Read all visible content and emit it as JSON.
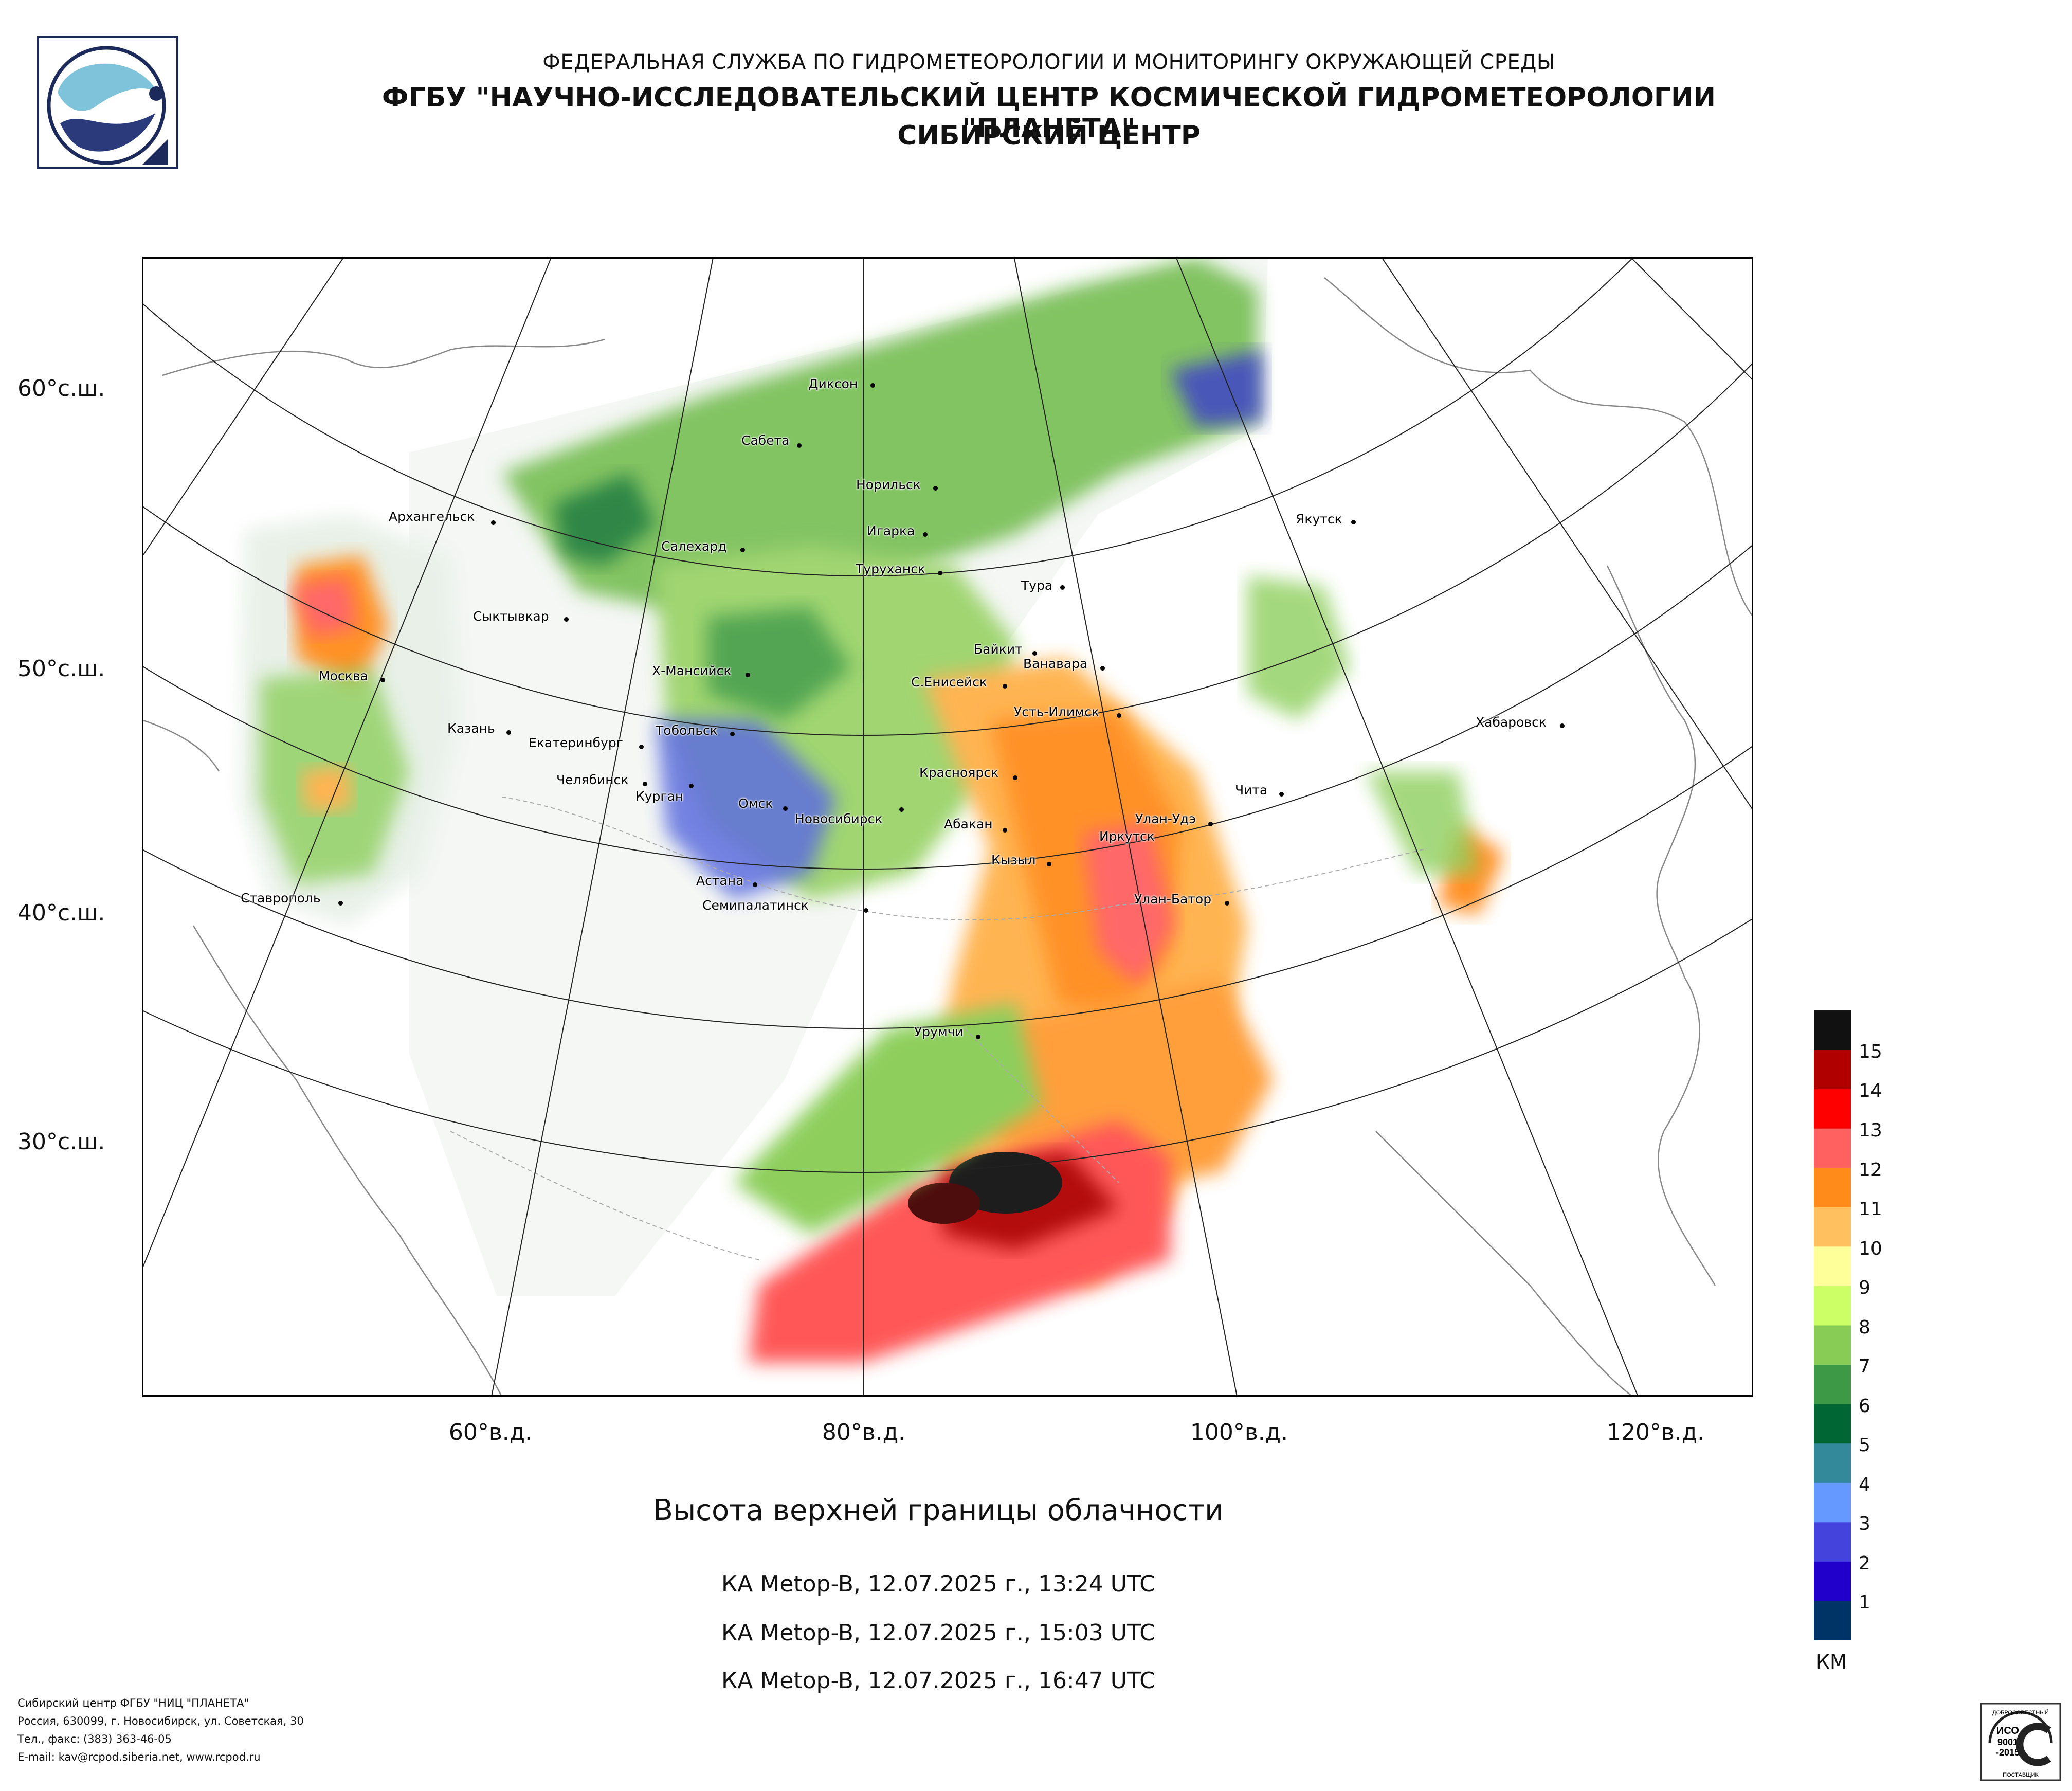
{
  "header": {
    "line1": "ФЕДЕРАЛЬНАЯ СЛУЖБА ПО ГИДРОМЕТЕОРОЛОГИИ И МОНИТОРИНГУ ОКРУЖАЮЩЕЙ СРЕДЫ",
    "line2": "ФГБУ \"НАУЧНО-ИССЛЕДОВАТЕЛЬСКИЙ ЦЕНТР КОСМИЧЕСКОЙ ГИДРОМЕТЕОРОЛОГИИ \"ПЛАНЕТА\"",
    "line3": "СИБИРСКИЙ ЦЕНТР"
  },
  "map": {
    "latitude_labels": [
      "60°с.ш.",
      "50°с.ш.",
      "40°с.ш.",
      "30°с.ш."
    ],
    "longitude_labels": [
      "60°в.д.",
      "80°в.д.",
      "100°в.д.",
      "120°в.д."
    ],
    "cities": [
      "Диксон",
      "Сабета",
      "Норильск",
      "Архангельск",
      "Салехард",
      "Игарка",
      "Туруханск",
      "Тура",
      "Якутск",
      "Сыктывкар",
      "Байкит",
      "Ванавара",
      "Х-Мансийск",
      "С.Енисейск",
      "Москва",
      "Усть-Илимск",
      "Хабаровск",
      "Казань",
      "Екатеринбург",
      "Тобольск",
      "Челябинск",
      "Курган",
      "Красноярск",
      "Чита",
      "Омск",
      "Новосибирск",
      "Абакан",
      "Иркутск",
      "Улан-Удэ",
      "Кызыл",
      "Астана",
      "Ставрополь",
      "Семипалатинск",
      "Улан-Батор",
      "Урумчи"
    ]
  },
  "legend": {
    "colors": [
      "#111111",
      "#b00000",
      "#ff0000",
      "#ff6060",
      "#ff8c1a",
      "#ffc060",
      "#ffff99",
      "#ccff66",
      "#88cc55",
      "#3d9945",
      "#006633",
      "#338899",
      "#6699ff",
      "#4444dd",
      "#2200cc",
      "#003366"
    ],
    "labels": [
      "15",
      "14",
      "13",
      "12",
      "11",
      "10",
      "9",
      "8",
      "7",
      "6",
      "5",
      "4",
      "3",
      "2",
      "1"
    ],
    "units": "КМ"
  },
  "title": "Высота верхней границы облачности",
  "captions": [
    "КА Metop-B, 12.07.2025 г., 13:24 UTC",
    "КА Metop-B, 12.07.2025 г., 15:03 UTC",
    "КА Metop-B, 12.07.2025 г., 16:47 UTC"
  ],
  "footer": {
    "line1": "Сибирский центр ФГБУ \"НИЦ \"ПЛАНЕТА\"",
    "line2": "Россия, 630099, г. Новосибирск, ул. Советская, 30",
    "line3": "Тел., факс: (383) 363-46-05",
    "line4": "E-mail: kav@rcpod.siberia.net, www.rcpod.ru"
  },
  "cert": {
    "top": "ДОБРОСОВЕСТНЫЙ",
    "mid1": "ИСО",
    "mid2": "9001",
    "mid3": "-2015",
    "bottom": "ПОСТАВЩИК"
  }
}
